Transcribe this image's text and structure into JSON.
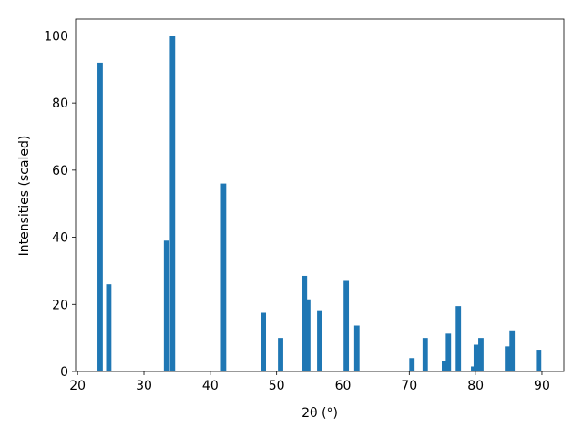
{
  "chart_data": {
    "type": "bar",
    "x_label": "2θ (°)",
    "y_label": "Intensities (scaled)",
    "x": [
      23.4,
      24.7,
      33.4,
      34.3,
      42.0,
      48.0,
      50.6,
      54.2,
      54.7,
      56.5,
      60.5,
      62.1,
      70.4,
      72.4,
      75.3,
      75.9,
      77.4,
      79.7,
      80.1,
      80.8,
      84.8,
      85.5,
      89.5
    ],
    "values": [
      92,
      26,
      39,
      100,
      56,
      17.5,
      10,
      28.5,
      21.5,
      18,
      27,
      13.7,
      4,
      10,
      3.2,
      11.3,
      19.5,
      1.5,
      8,
      10,
      7.5,
      12,
      6.5
    ],
    "color": "#1f77b4",
    "xlim": [
      19.7,
      93.3
    ],
    "ylim": [
      0,
      105
    ],
    "xticks": [
      20,
      30,
      40,
      50,
      60,
      70,
      80,
      90
    ],
    "yticks": [
      0,
      20,
      40,
      60,
      80,
      100
    ]
  }
}
